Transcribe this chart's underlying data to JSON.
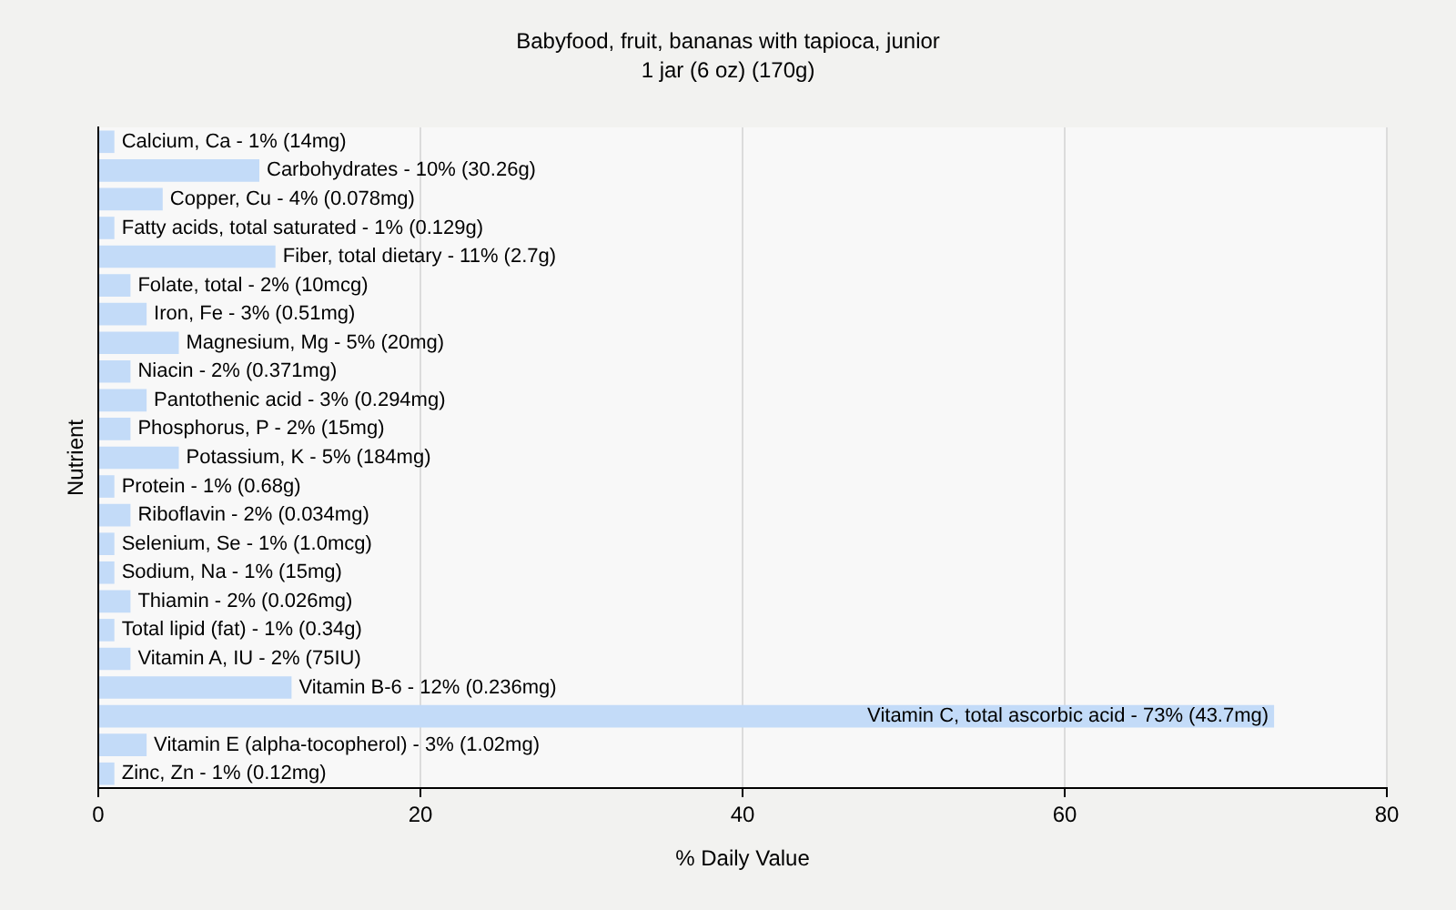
{
  "chart_data": {
    "type": "bar",
    "orientation": "horizontal",
    "title": "Babyfood, fruit, bananas with tapioca, junior",
    "subtitle": "1 jar (6 oz) (170g)",
    "xlabel": "% Daily Value",
    "ylabel": "Nutrient",
    "categories": [
      "Calcium, Ca - 1% (14mg)",
      "Carbohydrates - 10% (30.26g)",
      "Copper, Cu - 4% (0.078mg)",
      "Fatty acids, total saturated - 1% (0.129g)",
      "Fiber, total dietary - 11% (2.7g)",
      "Folate, total - 2% (10mcg)",
      "Iron, Fe - 3% (0.51mg)",
      "Magnesium, Mg - 5% (20mg)",
      "Niacin - 2% (0.371mg)",
      "Pantothenic acid - 3% (0.294mg)",
      "Phosphorus, P - 2% (15mg)",
      "Potassium, K - 5% (184mg)",
      "Protein - 1% (0.68g)",
      "Riboflavin - 2% (0.034mg)",
      "Selenium, Se - 1% (1.0mcg)",
      "Sodium, Na - 1% (15mg)",
      "Thiamin - 2% (0.026mg)",
      "Total lipid (fat) - 1% (0.34g)",
      "Vitamin A, IU - 2% (75IU)",
      "Vitamin B-6 - 12% (0.236mg)",
      "Vitamin C, total ascorbic acid - 73% (43.7mg)",
      "Vitamin E (alpha-tocopherol) - 3% (1.02mg)",
      "Zinc, Zn - 1% (0.12mg)"
    ],
    "values": [
      1,
      10,
      4,
      1,
      11,
      2,
      3,
      5,
      2,
      3,
      2,
      5,
      1,
      2,
      1,
      1,
      2,
      1,
      2,
      12,
      73,
      3,
      1
    ],
    "color": "#c3dbf8",
    "xlim": [
      0,
      80
    ],
    "xticks": [
      0,
      20,
      40,
      60,
      80
    ],
    "grid": "x"
  }
}
